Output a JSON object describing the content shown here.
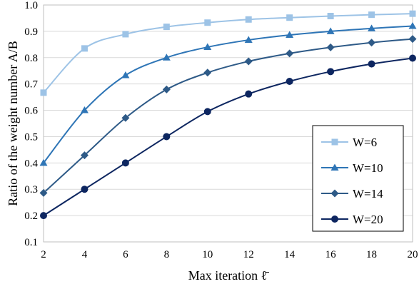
{
  "chart_data": {
    "type": "line",
    "title": "",
    "xlabel": "Max iteration ℓ̄",
    "ylabel": "Ratio of the weight number A/B",
    "x": [
      2,
      4,
      6,
      8,
      10,
      12,
      14,
      16,
      18,
      20
    ],
    "xlim": [
      2,
      20
    ],
    "ylim": [
      0.1,
      1.0
    ],
    "x_ticks": [
      "2",
      "4",
      "6",
      "8",
      "10",
      "12",
      "14",
      "16",
      "18",
      "20"
    ],
    "y_ticks": [
      "0.1",
      "0.2",
      "0.3",
      "0.4",
      "0.5",
      "0.6",
      "0.7",
      "0.8",
      "0.9",
      "1.0"
    ],
    "grid": "horizontal",
    "legend_position": "bottom-right",
    "series": [
      {
        "name": "W=6",
        "color": "#9dc3e6",
        "marker": "square",
        "values": [
          0.667,
          0.835,
          0.889,
          0.917,
          0.933,
          0.945,
          0.952,
          0.958,
          0.963,
          0.967
        ]
      },
      {
        "name": "W=10",
        "color": "#2e75b6",
        "marker": "triangle",
        "values": [
          0.4,
          0.6,
          0.733,
          0.8,
          0.84,
          0.867,
          0.886,
          0.9,
          0.911,
          0.92
        ]
      },
      {
        "name": "W=14",
        "color": "#2e5a87",
        "marker": "diamond",
        "values": [
          0.286,
          0.429,
          0.571,
          0.679,
          0.743,
          0.786,
          0.816,
          0.839,
          0.857,
          0.871
        ]
      },
      {
        "name": "W=20",
        "color": "#0d2660",
        "marker": "circle",
        "values": [
          0.2,
          0.3,
          0.4,
          0.5,
          0.595,
          0.662,
          0.71,
          0.747,
          0.776,
          0.798
        ]
      }
    ]
  }
}
